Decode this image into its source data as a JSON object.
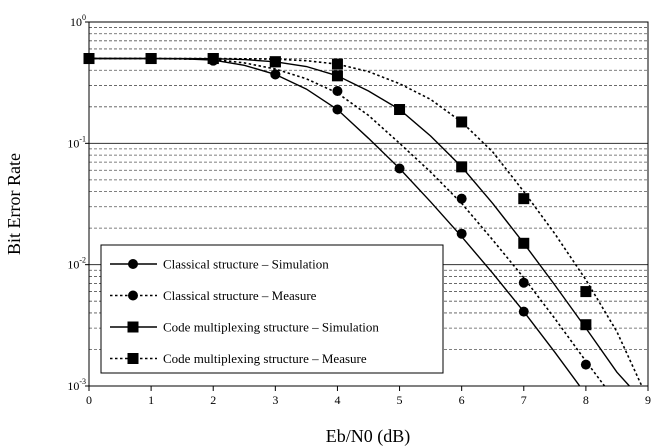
{
  "chart_data": {
    "type": "line",
    "title": "",
    "xlabel": "Eb/N0 (dB)",
    "ylabel": "Bit Error Rate",
    "x_ticks": [
      "0",
      "1",
      "2",
      "3",
      "4",
      "5",
      "6",
      "7",
      "8",
      "9"
    ],
    "y_ticks": [
      {
        "base": "10",
        "exp": "0"
      },
      {
        "base": "10",
        "exp": "-1"
      },
      {
        "base": "10",
        "exp": "-2"
      },
      {
        "base": "10",
        "exp": "-3"
      }
    ],
    "xlim": [
      0,
      9
    ],
    "ylim": [
      0.001,
      1
    ],
    "y_scale": "log",
    "grid": "horizontal major and minor (minor dashed)",
    "legend_position": "bottom-left",
    "series": [
      {
        "name": "Classical structure – Simulation",
        "line": "solid",
        "marker": "circle",
        "curve": [
          [
            0,
            0.5
          ],
          [
            1,
            0.499
          ],
          [
            1.5,
            0.497
          ],
          [
            2,
            0.485
          ],
          [
            2.5,
            0.44
          ],
          [
            3,
            0.37
          ],
          [
            3.5,
            0.28
          ],
          [
            4,
            0.19
          ],
          [
            4.5,
            0.11
          ],
          [
            5,
            0.062
          ],
          [
            5.5,
            0.033
          ],
          [
            6,
            0.017
          ],
          [
            6.5,
            0.0085
          ],
          [
            7,
            0.0041
          ],
          [
            7.5,
            0.0019
          ],
          [
            7.9,
            0.001
          ]
        ],
        "points": [
          [
            0,
            0.5
          ],
          [
            1,
            0.5
          ],
          [
            2,
            0.48
          ],
          [
            3,
            0.37
          ],
          [
            4,
            0.19
          ],
          [
            5,
            0.062
          ],
          [
            6,
            0.018
          ],
          [
            7,
            0.0041
          ]
        ]
      },
      {
        "name": "Classical structure – Measure",
        "line": "dotted",
        "marker": "circle",
        "curve": [
          [
            0,
            0.5
          ],
          [
            1,
            0.499
          ],
          [
            2,
            0.492
          ],
          [
            2.5,
            0.46
          ],
          [
            3,
            0.41
          ],
          [
            3.5,
            0.34
          ],
          [
            4,
            0.26
          ],
          [
            4.5,
            0.17
          ],
          [
            5,
            0.1
          ],
          [
            5.5,
            0.058
          ],
          [
            6,
            0.032
          ],
          [
            6.5,
            0.016
          ],
          [
            7,
            0.0078
          ],
          [
            7.5,
            0.0036
          ],
          [
            8,
            0.0016
          ],
          [
            8.3,
            0.001
          ]
        ],
        "points": [
          [
            0,
            0.5
          ],
          [
            1,
            0.5
          ],
          [
            2,
            0.5
          ],
          [
            3,
            0.37
          ],
          [
            4,
            0.27
          ],
          [
            6,
            0.035
          ],
          [
            7,
            0.0071
          ],
          [
            8,
            0.0015
          ]
        ]
      },
      {
        "name": "Code multiplexing structure – Simulation",
        "line": "solid",
        "marker": "square",
        "curve": [
          [
            0,
            0.5
          ],
          [
            1,
            0.5
          ],
          [
            2,
            0.498
          ],
          [
            2.5,
            0.49
          ],
          [
            3,
            0.47
          ],
          [
            3.5,
            0.43
          ],
          [
            4,
            0.36
          ],
          [
            4.5,
            0.27
          ],
          [
            5,
            0.19
          ],
          [
            5.5,
            0.115
          ],
          [
            6,
            0.064
          ],
          [
            6.5,
            0.032
          ],
          [
            7,
            0.015
          ],
          [
            7.5,
            0.0068
          ],
          [
            8,
            0.003
          ],
          [
            8.5,
            0.0013
          ],
          [
            8.7,
            0.001
          ]
        ],
        "points": [
          [
            0,
            0.5
          ],
          [
            1,
            0.5
          ],
          [
            2,
            0.5
          ],
          [
            3,
            0.47
          ],
          [
            4,
            0.36
          ],
          [
            5,
            0.19
          ],
          [
            6,
            0.064
          ],
          [
            7,
            0.015
          ],
          [
            8,
            0.0032
          ]
        ]
      },
      {
        "name": "Code multiplexing structure – Measure",
        "line": "dotted",
        "marker": "square",
        "curve": [
          [
            0,
            0.5
          ],
          [
            1,
            0.5
          ],
          [
            2,
            0.5
          ],
          [
            3,
            0.495
          ],
          [
            3.5,
            0.48
          ],
          [
            4,
            0.45
          ],
          [
            4.5,
            0.39
          ],
          [
            5,
            0.31
          ],
          [
            5.5,
            0.23
          ],
          [
            6,
            0.15
          ],
          [
            6.5,
            0.085
          ],
          [
            7,
            0.04
          ],
          [
            7.5,
            0.018
          ],
          [
            8,
            0.0075
          ],
          [
            8.5,
            0.0028
          ],
          [
            8.9,
            0.001
          ]
        ],
        "points": [
          [
            0,
            0.5
          ],
          [
            1,
            0.5
          ],
          [
            2,
            0.5
          ],
          [
            3,
            0.47
          ],
          [
            4,
            0.45
          ],
          [
            6,
            0.15
          ],
          [
            7,
            0.035
          ],
          [
            8,
            0.006
          ]
        ]
      }
    ]
  }
}
